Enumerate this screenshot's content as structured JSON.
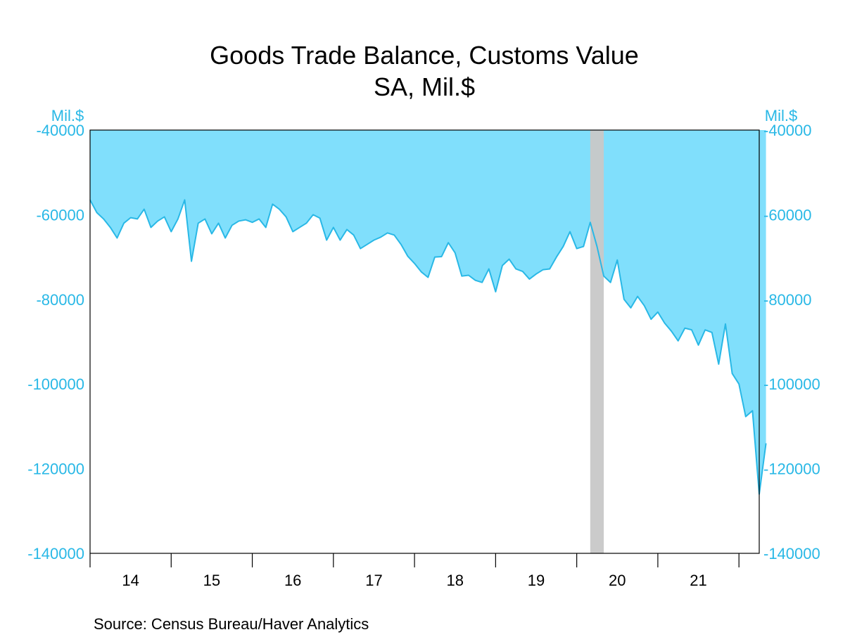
{
  "chart_data": {
    "type": "area",
    "title": "Goods Trade Balance, Customs Value",
    "subtitle": "SA, Mil.$",
    "ylabel_left": "Mil.$",
    "ylabel_right": "Mil.$",
    "ylim": [
      -140000,
      -40000
    ],
    "yticks": [
      -40000,
      -60000,
      -80000,
      -100000,
      -120000,
      -140000
    ],
    "ytick_labels": [
      "-40000",
      "-60000",
      "-80000",
      "-100000",
      "-120000",
      "-140000"
    ],
    "xlim": [
      2014.0,
      2022.25
    ],
    "xtick_years": [
      14,
      15,
      16,
      17,
      18,
      19,
      20,
      21
    ],
    "xtick_labels": [
      "14",
      "15",
      "16",
      "17",
      "18",
      "19",
      "20",
      "21"
    ],
    "x_start_year": 2014,
    "recession_band": [
      2020.1667,
      2020.3333
    ],
    "series": [
      {
        "values": [
          -56500,
          -59500,
          -61000,
          -63000,
          -65500,
          -62000,
          -60700,
          -61000,
          -58700,
          -63000,
          -61500,
          -60500,
          -64000,
          -61000,
          -56500,
          -71000,
          -62000,
          -61000,
          -64500,
          -62000,
          -65500,
          -62500,
          -61500,
          -61200,
          -61800,
          -61000,
          -63000,
          -57500,
          -58700,
          -60500,
          -64000,
          -63000,
          -62000,
          -60000,
          -60800,
          -66000,
          -63000,
          -66000,
          -63500,
          -64800,
          -68000,
          -67000,
          -66000,
          -65300,
          -64300,
          -64800,
          -67000,
          -69800,
          -71500,
          -73500,
          -74800,
          -70000,
          -69900,
          -66600,
          -69000,
          -74500,
          -74300,
          -75500,
          -76000,
          -72800,
          -78200,
          -72000,
          -70500,
          -72800,
          -73400,
          -75200,
          -74000,
          -73000,
          -72800,
          -70000,
          -67500,
          -64000,
          -68000,
          -67500,
          -61800,
          -67500,
          -74500,
          -76000,
          -70700,
          -80000,
          -82000,
          -79300,
          -81500,
          -84700,
          -83000,
          -85600,
          -87500,
          -89800,
          -86800,
          -87200,
          -90800,
          -87200,
          -87800,
          -95300,
          -85800,
          -97500,
          -100000,
          -107700,
          -106300,
          -126000,
          -114000
        ],
        "color": "#00bfff"
      }
    ],
    "line_color": "#29b8e6",
    "fill_color": "#80dffc",
    "recession_color": "#c8c8c8",
    "axis_text_color": "#29b8e6",
    "source": "Source:  Census Bureau/Haver Analytics"
  }
}
